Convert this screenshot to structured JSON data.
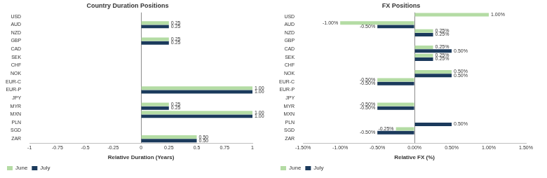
{
  "chart_data": [
    {
      "type": "bar",
      "orientation": "horizontal",
      "title": "Country Duration Positions",
      "x_label": "Relative Duration (Years)",
      "categories": [
        "USD",
        "AUD",
        "NZD",
        "GBP",
        "CAD",
        "SEK",
        "CHF",
        "NOK",
        "EUR-C",
        "EUR-P",
        "JPY",
        "MYR",
        "MXN",
        "PLN",
        "SGD",
        "ZAR"
      ],
      "series": [
        {
          "name": "June",
          "color": "#b4dca4",
          "values": [
            null,
            0.25,
            null,
            0.25,
            null,
            null,
            null,
            null,
            null,
            1,
            null,
            0.25,
            1,
            null,
            null,
            0.5
          ],
          "value_labels": [
            null,
            "0.25",
            null,
            "0.25",
            null,
            null,
            null,
            null,
            null,
            "1.00",
            null,
            "0.25",
            "1.00",
            null,
            null,
            "0.50"
          ]
        },
        {
          "name": "July",
          "color": "#1b3a5c",
          "values": [
            null,
            0.25,
            null,
            0.25,
            null,
            null,
            null,
            null,
            null,
            1,
            null,
            0.25,
            1,
            null,
            null,
            0.5
          ],
          "value_labels": [
            null,
            "0.25",
            null,
            "0.25",
            null,
            null,
            null,
            null,
            null,
            "1.00",
            null,
            "0.25",
            "1.00",
            null,
            null,
            "0.50"
          ]
        }
      ],
      "xlim": [
        -1,
        1
      ],
      "xticks": [
        -1,
        -0.75,
        -0.5,
        -0.25,
        0,
        0.25,
        0.5,
        0.75,
        1
      ],
      "grid": false,
      "legend": "bottom",
      "data_labels": true
    },
    {
      "type": "bar",
      "orientation": "horizontal",
      "title": "FX Positions",
      "x_label": "Relative FX (%)",
      "categories": [
        "USD",
        "AUD",
        "NZD",
        "GBP",
        "CAD",
        "SEK",
        "CHF",
        "NOK",
        "EUR-C",
        "EUR-P",
        "JPY",
        "MYR",
        "MXN",
        "PLN",
        "SGD",
        "ZAR"
      ],
      "series": [
        {
          "name": "June",
          "color": "#b4dca4",
          "values": [
            1,
            -1,
            0.25,
            null,
            0.25,
            0.25,
            null,
            0.5,
            -0.5,
            null,
            null,
            -0.5,
            null,
            null,
            -0.25,
            null
          ],
          "value_labels": [
            "1.00%",
            "-1.00%",
            "0.25%",
            null,
            "0.25%",
            "0.25%",
            null,
            "0.50%",
            "-0.50%",
            null,
            null,
            "-0.50%",
            null,
            null,
            "-0.25%",
            null
          ]
        },
        {
          "name": "July",
          "color": "#1b3a5c",
          "values": [
            null,
            -0.5,
            0.25,
            null,
            0.5,
            0.25,
            null,
            0.5,
            -0.5,
            null,
            null,
            -0.5,
            null,
            0.5,
            -0.5,
            null
          ],
          "value_labels": [
            null,
            "-0.50%",
            "0.25%",
            null,
            "0.50%",
            "0.25%",
            null,
            "0.50%",
            "-0.50%",
            null,
            null,
            "-0.50%",
            null,
            "0.50%",
            "-0.50%",
            null
          ]
        }
      ],
      "xlim": [
        -1.5,
        1.5
      ],
      "xticks": [
        {
          "value": -1.5,
          "label": "-1.50%"
        },
        {
          "value": -1,
          "label": "-1.00%"
        },
        {
          "value": -0.5,
          "label": "-0.50%"
        },
        {
          "value": 0,
          "label": "0.00%"
        },
        {
          "value": 0.5,
          "label": "0.50%"
        },
        {
          "value": 1,
          "label": "1.00%"
        },
        {
          "value": 1.5,
          "label": "1.50%"
        }
      ],
      "grid": false,
      "legend": "bottom",
      "data_labels": true
    }
  ]
}
